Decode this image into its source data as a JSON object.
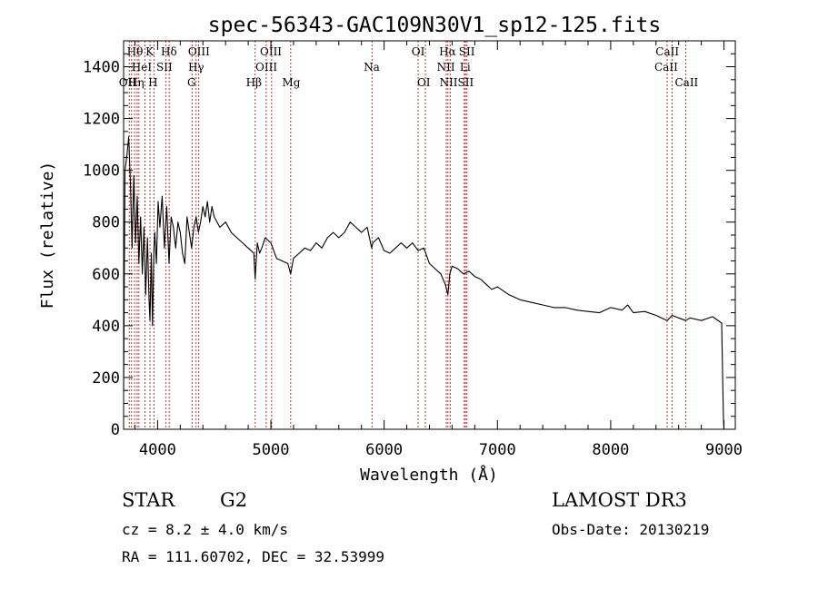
{
  "chart_data": {
    "type": "line",
    "title": "spec-56343-GAC109N30V1_sp12-125.fits",
    "xlabel": "Wavelength (Å)",
    "ylabel": "Flux (relative)",
    "xlim": [
      3700,
      9100
    ],
    "ylim": [
      0,
      1500
    ],
    "x_ticks": [
      4000,
      5000,
      6000,
      7000,
      8000,
      9000
    ],
    "x_tick_labels": [
      "4000",
      "5000",
      "6000",
      "7000",
      "8000",
      "9000"
    ],
    "y_ticks": [
      0,
      200,
      400,
      600,
      800,
      1000,
      1200,
      1400
    ],
    "y_tick_labels": [
      "0",
      "200",
      "400",
      "600",
      "800",
      "1000",
      "1200",
      "1400"
    ],
    "series": [
      {
        "name": "flux",
        "color": "#000000",
        "x": [
          3700,
          3712,
          3730,
          3745,
          3760,
          3775,
          3790,
          3805,
          3820,
          3835,
          3850,
          3865,
          3880,
          3895,
          3910,
          3925,
          3933,
          3945,
          3955,
          3968,
          3975,
          3990,
          4005,
          4020,
          4040,
          4060,
          4080,
          4101,
          4120,
          4140,
          4160,
          4180,
          4200,
          4220,
          4240,
          4260,
          4280,
          4300,
          4320,
          4340,
          4360,
          4380,
          4400,
          4420,
          4440,
          4460,
          4480,
          4500,
          4550,
          4600,
          4650,
          4700,
          4750,
          4800,
          4850,
          4861,
          4880,
          4900,
          4920,
          4950,
          5000,
          5050,
          5100,
          5150,
          5175,
          5200,
          5250,
          5300,
          5350,
          5400,
          5450,
          5500,
          5550,
          5600,
          5650,
          5700,
          5750,
          5800,
          5850,
          5890,
          5900,
          5950,
          6000,
          6050,
          6100,
          6150,
          6200,
          6250,
          6300,
          6350,
          6400,
          6450,
          6500,
          6540,
          6563,
          6580,
          6600,
          6650,
          6700,
          6750,
          6800,
          6850,
          6900,
          6950,
          7000,
          7100,
          7200,
          7300,
          7400,
          7500,
          7600,
          7700,
          7800,
          7900,
          8000,
          8100,
          8150,
          8200,
          8300,
          8400,
          8498,
          8542,
          8600,
          8662,
          8700,
          8800,
          8900,
          8980,
          8995,
          9000
        ],
        "y": [
          150,
          1000,
          1060,
          1130,
          950,
          700,
          980,
          720,
          900,
          640,
          820,
          600,
          780,
          520,
          740,
          500,
          420,
          680,
          400,
          700,
          760,
          640,
          880,
          780,
          900,
          700,
          860,
          640,
          820,
          780,
          700,
          800,
          760,
          680,
          640,
          820,
          760,
          700,
          780,
          820,
          760,
          800,
          860,
          820,
          880,
          800,
          860,
          820,
          780,
          800,
          760,
          740,
          720,
          700,
          680,
          580,
          720,
          680,
          700,
          740,
          720,
          660,
          650,
          640,
          600,
          660,
          680,
          700,
          690,
          720,
          700,
          740,
          760,
          740,
          760,
          800,
          780,
          760,
          780,
          700,
          720,
          740,
          690,
          680,
          700,
          720,
          700,
          720,
          690,
          700,
          640,
          620,
          600,
          560,
          520,
          600,
          630,
          620,
          600,
          610,
          590,
          580,
          560,
          540,
          550,
          520,
          500,
          490,
          480,
          470,
          470,
          460,
          455,
          450,
          470,
          460,
          480,
          450,
          455,
          440,
          420,
          440,
          430,
          420,
          430,
          420,
          435,
          410,
          50,
          0
        ]
      }
    ],
    "lines": [
      {
        "x": 3750,
        "label": "OII"
      },
      {
        "x": 3770,
        "label": "Hθ"
      },
      {
        "x": 3797,
        "label": "Hη"
      },
      {
        "x": 3820,
        "label": "Hθ"
      },
      {
        "x": 3835,
        "label": "Hη"
      },
      {
        "x": 3889,
        "label": "HeI"
      },
      {
        "x": 3933,
        "label": "K"
      },
      {
        "x": 3968,
        "label": "H"
      },
      {
        "x": 4072,
        "label": "SII"
      },
      {
        "x": 4102,
        "label": "Hδ"
      },
      {
        "x": 4304,
        "label": "G"
      },
      {
        "x": 4340,
        "label": "Hγ"
      },
      {
        "x": 4363,
        "label": "OIII"
      },
      {
        "x": 4861,
        "label": "Hβ"
      },
      {
        "x": 4959,
        "label": "OIII"
      },
      {
        "x": 5007,
        "label": "OIII"
      },
      {
        "x": 5175,
        "label": "Mg"
      },
      {
        "x": 5893,
        "label": "Na"
      },
      {
        "x": 6300,
        "label": "OI"
      },
      {
        "x": 6364,
        "label": "OI"
      },
      {
        "x": 6548,
        "label": "NII"
      },
      {
        "x": 6563,
        "label": "Hα"
      },
      {
        "x": 6583,
        "label": "NII"
      },
      {
        "x": 6708,
        "label": "Li"
      },
      {
        "x": 6717,
        "label": "SII"
      },
      {
        "x": 6731,
        "label": "SII"
      },
      {
        "x": 8498,
        "label": "CaII"
      },
      {
        "x": 8542,
        "label": "CaII"
      },
      {
        "x": 8662,
        "label": "CaII"
      }
    ],
    "line_labels": [
      {
        "text": "Hθ",
        "x": 3800,
        "row": 0
      },
      {
        "text": "K",
        "x": 3930,
        "row": 0
      },
      {
        "text": "Hδ",
        "x": 4100,
        "row": 0
      },
      {
        "text": "OIII",
        "x": 4365,
        "row": 0
      },
      {
        "text": "OIII",
        "x": 5000,
        "row": 0
      },
      {
        "text": "OI",
        "x": 6300,
        "row": 0
      },
      {
        "text": "Hα",
        "x": 6560,
        "row": 0
      },
      {
        "text": "SII",
        "x": 6730,
        "row": 0
      },
      {
        "text": "CaII",
        "x": 8500,
        "row": 0
      },
      {
        "text": "HeI",
        "x": 3860,
        "row": 1
      },
      {
        "text": "SII",
        "x": 4060,
        "row": 1
      },
      {
        "text": "Hγ",
        "x": 4340,
        "row": 1
      },
      {
        "text": "OIII",
        "x": 4960,
        "row": 1
      },
      {
        "text": "Na",
        "x": 5890,
        "row": 1
      },
      {
        "text": "NII",
        "x": 6545,
        "row": 1
      },
      {
        "text": "Li",
        "x": 6715,
        "row": 1
      },
      {
        "text": "CaII",
        "x": 8490,
        "row": 1
      },
      {
        "text": "OII",
        "x": 3735,
        "row": 2
      },
      {
        "text": "Hη",
        "x": 3810,
        "row": 2
      },
      {
        "text": "H",
        "x": 3960,
        "row": 2
      },
      {
        "text": "G",
        "x": 4300,
        "row": 2
      },
      {
        "text": "Hβ",
        "x": 4850,
        "row": 2
      },
      {
        "text": "Mg",
        "x": 5180,
        "row": 2
      },
      {
        "text": "OI",
        "x": 6350,
        "row": 2
      },
      {
        "text": "NIISII",
        "x": 6640,
        "row": 2
      },
      {
        "text": "CaII",
        "x": 8670,
        "row": 2
      }
    ]
  },
  "info": {
    "object_class": "STAR",
    "subclass": "G2",
    "survey": "LAMOST DR3",
    "velocity": "cz = 8.2 ± 4.0 km/s",
    "obs_date": "Obs-Date: 20130219",
    "coords": "RA = 111.60702, DEC =  32.53999"
  },
  "colors": {
    "spectrum": "#000000",
    "line_markers": "#b22222",
    "axes": "#000000"
  }
}
